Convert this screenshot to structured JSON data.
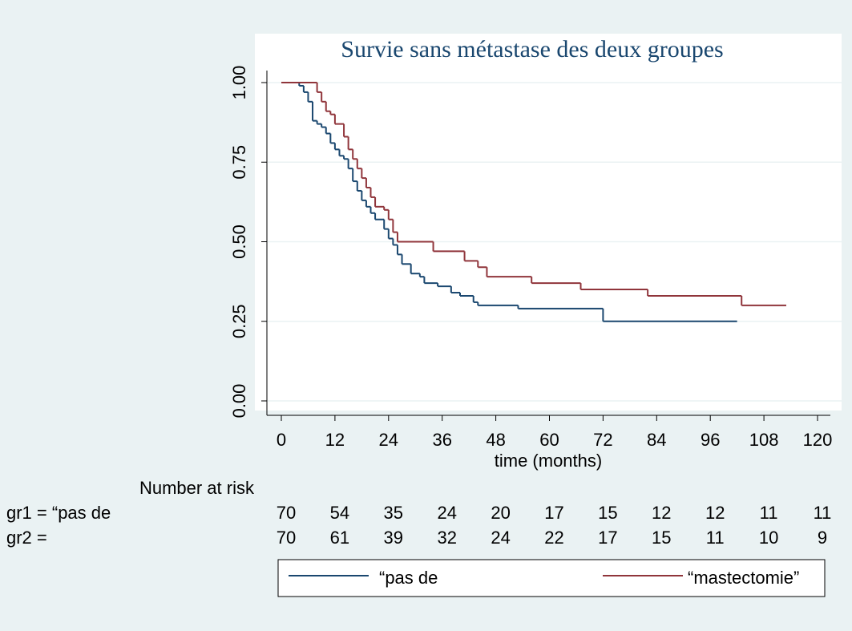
{
  "chart_data": {
    "type": "step",
    "title": "Survie sans métastase des deux groupes",
    "xlabel": "time (months)",
    "xlim": [
      0,
      120
    ],
    "xticks": [
      0,
      12,
      24,
      36,
      48,
      60,
      72,
      84,
      96,
      108,
      120
    ],
    "ylim": [
      0,
      1
    ],
    "yticks": [
      {
        "value": 0,
        "label": "0.00"
      },
      {
        "value": 0.25,
        "label": "0.25"
      },
      {
        "value": 0.5,
        "label": "0.50"
      },
      {
        "value": 0.75,
        "label": "0.75"
      },
      {
        "value": 1,
        "label": "1.00"
      }
    ],
    "grid": true,
    "series": [
      {
        "name": "“pas de",
        "color": "#1a476f",
        "x": [
          0,
          4,
          5,
          6,
          7,
          8,
          9,
          10,
          11,
          12,
          13,
          14,
          15,
          16,
          17,
          18,
          19,
          20,
          21,
          23,
          24,
          25,
          26,
          27,
          29,
          31,
          32,
          35,
          38,
          40,
          43,
          44,
          53,
          72,
          102
        ],
        "values": [
          1,
          0.99,
          0.97,
          0.94,
          0.88,
          0.87,
          0.86,
          0.84,
          0.81,
          0.79,
          0.77,
          0.76,
          0.73,
          0.69,
          0.66,
          0.63,
          0.61,
          0.59,
          0.57,
          0.54,
          0.51,
          0.49,
          0.46,
          0.43,
          0.4,
          0.39,
          0.37,
          0.36,
          0.34,
          0.33,
          0.31,
          0.3,
          0.29,
          0.25,
          0.25
        ]
      },
      {
        "name": "“mastectomie”",
        "color": "#90353b",
        "x": [
          0,
          8,
          9,
          10,
          11,
          12,
          14,
          15,
          16,
          17,
          18,
          19,
          20,
          21,
          23,
          24,
          25,
          26,
          34,
          41,
          44,
          46,
          56,
          67,
          82,
          103,
          113
        ],
        "values": [
          1,
          0.97,
          0.94,
          0.91,
          0.9,
          0.87,
          0.83,
          0.79,
          0.76,
          0.73,
          0.7,
          0.67,
          0.64,
          0.61,
          0.6,
          0.57,
          0.53,
          0.5,
          0.47,
          0.44,
          0.42,
          0.39,
          0.37,
          0.35,
          0.33,
          0.3,
          0.3
        ]
      }
    ],
    "number_at_risk": {
      "title": "Number at risk",
      "rows": [
        {
          "label": "gr1 = “pas de",
          "values": [
            70,
            54,
            35,
            24,
            20,
            17,
            15,
            12,
            12,
            11,
            11
          ]
        },
        {
          "label": "gr2 =",
          "values": [
            70,
            61,
            39,
            32,
            24,
            22,
            17,
            15,
            11,
            10,
            9
          ]
        }
      ]
    }
  }
}
